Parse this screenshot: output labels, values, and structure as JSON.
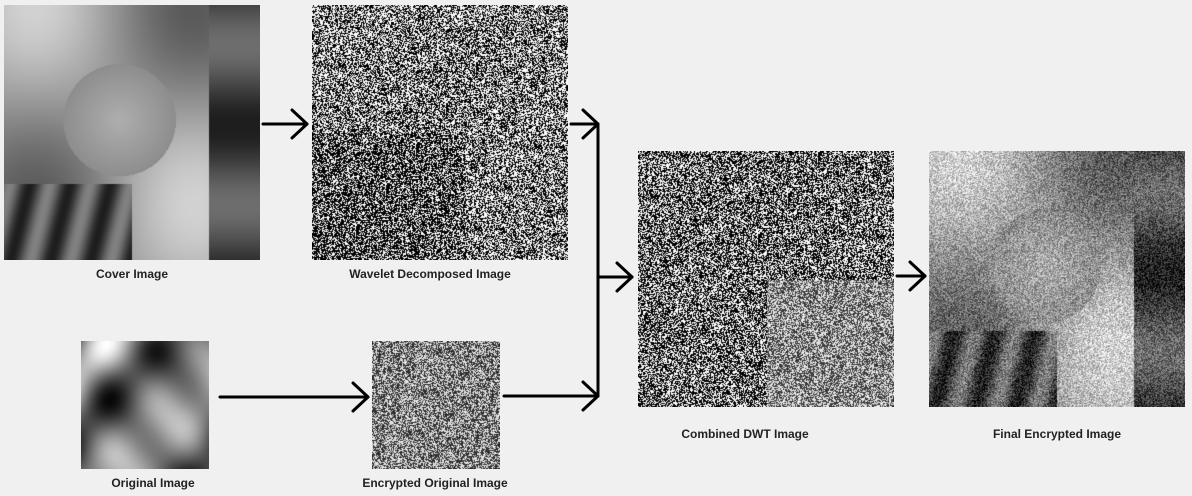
{
  "captions": {
    "cover": "Cover Image",
    "wavelet": "Wavelet Decomposed Image",
    "original": "Original Image",
    "encrypted_original": "Encrypted Original Image",
    "combined": "Combined DWT Image",
    "final": "Final Encrypted Image"
  }
}
